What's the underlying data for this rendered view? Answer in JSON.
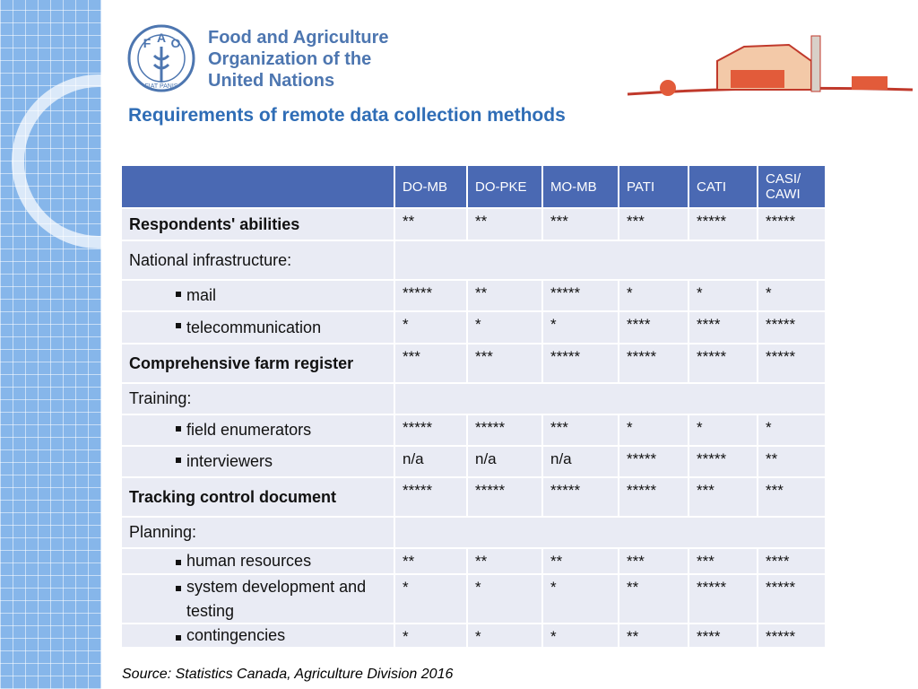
{
  "logo": {
    "letters": [
      "F",
      "A",
      "O"
    ],
    "motto": "FIAT PANIS",
    "name_lines": [
      "Food and Agriculture",
      "Organization of the",
      "United Nations"
    ]
  },
  "title": "Requirements of remote data collection methods",
  "table": {
    "columns": [
      "DO-MB",
      "DO-PKE",
      "MO-MB",
      "PATI",
      "CATI",
      "CASI/ CAWI"
    ],
    "rows": [
      {
        "label": "Respondents' abilities",
        "cells": [
          "**",
          "**",
          "***",
          "***",
          "*****",
          "*****"
        ]
      },
      {
        "label": "National infrastructure:",
        "items": [
          {
            "label": "mail",
            "cells": [
              "*****",
              "**",
              "*****",
              "*",
              "*",
              "*"
            ]
          },
          {
            "label": "telecommunication",
            "cells": [
              "*",
              "*",
              "*",
              "****",
              "****",
              "*****"
            ]
          }
        ]
      },
      {
        "label": "Comprehensive farm register",
        "cells": [
          "***",
          "***",
          "*****",
          "*****",
          "*****",
          "*****"
        ]
      },
      {
        "label": "Training:",
        "items": [
          {
            "label": "field enumerators",
            "cells": [
              "*****",
              "*****",
              "***",
              "*",
              "*",
              "*"
            ]
          },
          {
            "label": "interviewers",
            "cells": [
              "n/a",
              "n/a",
              "n/a",
              "*****",
              "*****",
              "**"
            ]
          }
        ]
      },
      {
        "label": "Tracking control document",
        "cells": [
          "*****",
          "*****",
          "*****",
          "*****",
          "***",
          "***"
        ]
      },
      {
        "label": "Planning:",
        "items": [
          {
            "label": "human resources",
            "cells": [
              "**",
              "**",
              "**",
              "***",
              "***",
              "****"
            ]
          },
          {
            "label": "system development and testing",
            "cells": [
              "*",
              "*",
              "*",
              "**",
              "*****",
              "*****"
            ]
          },
          {
            "label": "contingencies",
            "cells": [
              "*",
              "*",
              "*",
              "**",
              "****",
              "*****"
            ]
          }
        ]
      }
    ]
  },
  "source": "Source: Statistics Canada, Agriculture Division 2016"
}
